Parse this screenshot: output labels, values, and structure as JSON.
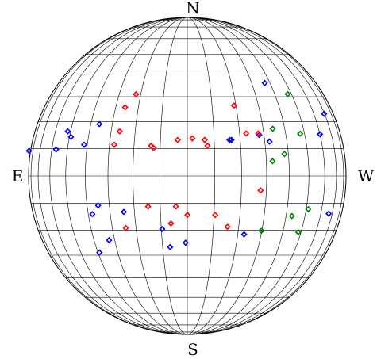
{
  "chart_data": {
    "type": "scatter",
    "projection": "stereonet",
    "grid": true,
    "grid_step_deg": 10,
    "axis_x_range": [
      -1,
      1
    ],
    "axis_y_range": [
      -1,
      1
    ],
    "labels": {
      "north": "N",
      "south": "S",
      "east": "E",
      "west": "W"
    },
    "marker": "diamond-open",
    "colors": {
      "blue": "#0000ff",
      "red": "#ff0000",
      "green": "#008000",
      "grid": "#000000"
    },
    "series": [
      {
        "color": "blue",
        "points": [
          [
            -0.997,
            0.158
          ],
          [
            -0.827,
            0.167
          ],
          [
            -0.753,
            0.281
          ],
          [
            -0.733,
            0.246
          ],
          [
            -0.65,
            0.197
          ],
          [
            -0.554,
            0.327
          ],
          [
            0.278,
            0.227
          ],
          [
            0.266,
            0.227
          ],
          [
            0.453,
            0.258
          ],
          [
            0.518,
            0.216
          ],
          [
            0.488,
            0.586
          ],
          [
            0.862,
            0.392
          ],
          [
            0.836,
            0.263
          ],
          [
            0.891,
            -0.238
          ],
          [
            -0.562,
            -0.187
          ],
          [
            -0.598,
            -0.241
          ],
          [
            -0.4,
            -0.227
          ],
          [
            -0.493,
            -0.405
          ],
          [
            -0.554,
            -0.483
          ],
          [
            -0.158,
            -0.335
          ],
          [
            -0.108,
            -0.449
          ],
          [
            -0.011,
            -0.421
          ],
          [
            0.358,
            -0.369
          ]
        ]
      },
      {
        "color": "red",
        "points": [
          [
            -0.323,
            0.515
          ],
          [
            -0.392,
            0.433
          ],
          [
            -0.426,
            0.281
          ],
          [
            -0.46,
            0.197
          ],
          [
            -0.228,
            0.19
          ],
          [
            -0.212,
            0.176
          ],
          [
            -0.061,
            0.227
          ],
          [
            0.032,
            0.237
          ],
          [
            0.109,
            0.227
          ],
          [
            0.127,
            0.19
          ],
          [
            0.294,
            0.444
          ],
          [
            0.371,
            0.268
          ],
          [
            0.447,
            0.268
          ],
          [
            0.462,
            -0.091
          ],
          [
            -0.247,
            -0.193
          ],
          [
            -0.072,
            -0.193
          ],
          [
            0.001,
            -0.246
          ],
          [
            -0.387,
            -0.329
          ],
          [
            -0.103,
            -0.3
          ],
          [
            0.176,
            -0.246
          ],
          [
            0.253,
            -0.321
          ]
        ]
      },
      {
        "color": "green",
        "points": [
          [
            0.633,
            0.516
          ],
          [
            0.538,
            0.298
          ],
          [
            0.711,
            0.266
          ],
          [
            0.612,
            0.139
          ],
          [
            0.537,
            0.093
          ],
          [
            0.762,
            -0.21
          ],
          [
            0.659,
            -0.253
          ],
          [
            0.467,
            -0.346
          ],
          [
            0.699,
            -0.355
          ]
        ]
      }
    ]
  }
}
